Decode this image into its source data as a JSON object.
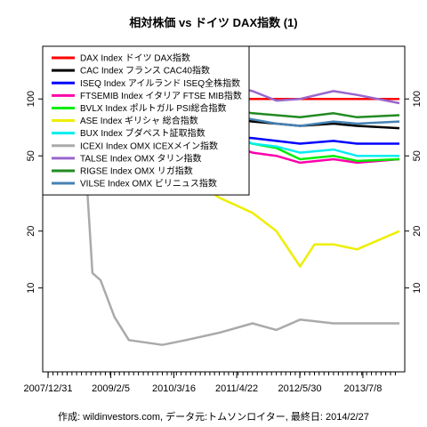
{
  "chart_data": {
    "type": "line",
    "title": "相対株価 vs ドイツ DAX指数 (1)",
    "footer": "作成: wildinvestors.com, データ元:トムソンロイター, 最終日: 2014/2/27",
    "y_scale": "log",
    "ylim": [
      3.6,
      190
    ],
    "y_ticks": [
      10,
      20,
      50,
      100
    ],
    "x_tick_labels": [
      "2007/12/31",
      "2009/2/5",
      "2010/3/16",
      "2011/4/22",
      "2012/5/30",
      "2013/7/8"
    ],
    "x_range": [
      "2007-12-31",
      "2014-02-27"
    ],
    "grid": false,
    "legend_position": "top-left",
    "reference_line": {
      "value": 100,
      "color": "#ff0000"
    },
    "series": [
      {
        "name": "DAX Index ドイツ DAX指数",
        "color": "#ff0000",
        "width": 2.5,
        "points": [
          [
            "2007-12-31",
            100
          ],
          [
            "2014-02-27",
            100
          ]
        ]
      },
      {
        "name": "CAC Index フランス CAC40指数",
        "color": "#000000",
        "width": 2.5,
        "points": [
          [
            "2007-12-31",
            100
          ],
          [
            "2008-06-01",
            95
          ],
          [
            "2008-12-01",
            85
          ],
          [
            "2009-06-01",
            80
          ],
          [
            "2010-01-01",
            78
          ],
          [
            "2010-06-01",
            76
          ],
          [
            "2011-01-01",
            80
          ],
          [
            "2011-08-01",
            76
          ],
          [
            "2012-01-01",
            74
          ],
          [
            "2012-06-01",
            72
          ],
          [
            "2013-01-01",
            74
          ],
          [
            "2013-06-01",
            72
          ],
          [
            "2014-02-27",
            70
          ]
        ]
      },
      {
        "name": "ISEQ Index アイルランド ISEQ全株指数",
        "color": "#0000ff",
        "width": 2.5,
        "points": [
          [
            "2007-12-31",
            100
          ],
          [
            "2008-06-01",
            90
          ],
          [
            "2008-12-01",
            75
          ],
          [
            "2009-06-01",
            65
          ],
          [
            "2010-01-01",
            62
          ],
          [
            "2010-06-01",
            60
          ],
          [
            "2011-01-01",
            64
          ],
          [
            "2011-08-01",
            62
          ],
          [
            "2012-01-01",
            60
          ],
          [
            "2012-06-01",
            58
          ],
          [
            "2013-01-01",
            60
          ],
          [
            "2013-06-01",
            58
          ],
          [
            "2014-02-27",
            58
          ]
        ]
      },
      {
        "name": "FTSEMIB Index イタリア FTSE MIB指数",
        "color": "#ff00aa",
        "width": 2.5,
        "points": [
          [
            "2007-12-31",
            100
          ],
          [
            "2008-06-01",
            88
          ],
          [
            "2008-12-01",
            78
          ],
          [
            "2009-06-01",
            70
          ],
          [
            "2010-01-01",
            65
          ],
          [
            "2010-06-01",
            58
          ],
          [
            "2011-01-01",
            60
          ],
          [
            "2011-08-01",
            52
          ],
          [
            "2012-01-01",
            50
          ],
          [
            "2012-06-01",
            46
          ],
          [
            "2013-01-01",
            48
          ],
          [
            "2013-06-01",
            46
          ],
          [
            "2014-02-27",
            48
          ]
        ]
      },
      {
        "name": "BVLX Index ポルトガル PSI総合指数",
        "color": "#00ee00",
        "width": 2.5,
        "points": [
          [
            "2007-12-31",
            100
          ],
          [
            "2008-06-01",
            90
          ],
          [
            "2008-12-01",
            82
          ],
          [
            "2009-06-01",
            78
          ],
          [
            "2010-01-01",
            75
          ],
          [
            "2010-06-01",
            70
          ],
          [
            "2011-01-01",
            66
          ],
          [
            "2011-08-01",
            58
          ],
          [
            "2012-01-01",
            55
          ],
          [
            "2012-06-01",
            48
          ],
          [
            "2013-01-01",
            50
          ],
          [
            "2013-06-01",
            47
          ],
          [
            "2014-02-27",
            48
          ]
        ]
      },
      {
        "name": "ASE Index ギリシャ 総合指数",
        "color": "#eeee00",
        "width": 2.5,
        "points": [
          [
            "2007-12-31",
            100
          ],
          [
            "2008-06-01",
            90
          ],
          [
            "2008-12-01",
            70
          ],
          [
            "2009-06-01",
            60
          ],
          [
            "2010-01-01",
            50
          ],
          [
            "2010-06-01",
            40
          ],
          [
            "2011-01-01",
            30
          ],
          [
            "2011-08-01",
            25
          ],
          [
            "2012-01-01",
            20
          ],
          [
            "2012-06-01",
            13
          ],
          [
            "2012-09-01",
            17
          ],
          [
            "2013-01-01",
            17
          ],
          [
            "2013-06-01",
            16
          ],
          [
            "2014-02-27",
            20
          ]
        ]
      },
      {
        "name": "BUX Index ブダペスト証取指数",
        "color": "#00eeee",
        "width": 2.5,
        "points": [
          [
            "2007-12-31",
            100
          ],
          [
            "2008-06-01",
            90
          ],
          [
            "2008-12-01",
            75
          ],
          [
            "2009-06-01",
            70
          ],
          [
            "2010-01-01",
            72
          ],
          [
            "2010-06-01",
            70
          ],
          [
            "2011-01-01",
            68
          ],
          [
            "2011-08-01",
            58
          ],
          [
            "2012-01-01",
            56
          ],
          [
            "2012-06-01",
            52
          ],
          [
            "2013-01-01",
            54
          ],
          [
            "2013-06-01",
            50
          ],
          [
            "2014-02-27",
            50
          ]
        ]
      },
      {
        "name": "ICEXI Index OMX ICEXメイン指数",
        "color": "#aaaaaa",
        "width": 2.5,
        "points": [
          [
            "2007-12-31",
            100
          ],
          [
            "2008-03-01",
            90
          ],
          [
            "2008-06-01",
            70
          ],
          [
            "2008-09-01",
            40
          ],
          [
            "2008-10-10",
            12
          ],
          [
            "2008-12-01",
            11
          ],
          [
            "2009-03-01",
            7
          ],
          [
            "2009-06-01",
            5.3
          ],
          [
            "2010-01-01",
            5.0
          ],
          [
            "2010-06-01",
            5.3
          ],
          [
            "2011-01-01",
            5.8
          ],
          [
            "2011-08-01",
            6.5
          ],
          [
            "2012-01-01",
            6.0
          ],
          [
            "2012-06-01",
            6.8
          ],
          [
            "2013-01-01",
            6.5
          ],
          [
            "2013-06-01",
            6.5
          ],
          [
            "2014-02-27",
            6.5
          ]
        ]
      },
      {
        "name": "TALSE Index OMX タリン指数",
        "color": "#9966cc",
        "width": 2.5,
        "points": [
          [
            "2007-12-31",
            100
          ],
          [
            "2008-06-01",
            96
          ],
          [
            "2008-12-01",
            80
          ],
          [
            "2009-06-01",
            85
          ],
          [
            "2010-01-01",
            100
          ],
          [
            "2010-06-01",
            110
          ],
          [
            "2011-01-01",
            120
          ],
          [
            "2011-08-01",
            110
          ],
          [
            "2012-01-01",
            98
          ],
          [
            "2012-06-01",
            100
          ],
          [
            "2013-01-01",
            110
          ],
          [
            "2013-06-01",
            105
          ],
          [
            "2014-02-27",
            95
          ]
        ]
      },
      {
        "name": "RIGSE Index OMX リガ指数",
        "color": "#228b22",
        "width": 2.5,
        "points": [
          [
            "2007-12-31",
            100
          ],
          [
            "2008-06-01",
            95
          ],
          [
            "2008-12-01",
            85
          ],
          [
            "2009-06-01",
            84
          ],
          [
            "2010-01-01",
            86
          ],
          [
            "2010-06-01",
            88
          ],
          [
            "2011-01-01",
            90
          ],
          [
            "2011-08-01",
            84
          ],
          [
            "2012-01-01",
            82
          ],
          [
            "2012-06-01",
            80
          ],
          [
            "2013-01-01",
            84
          ],
          [
            "2013-06-01",
            80
          ],
          [
            "2014-02-27",
            82
          ]
        ]
      },
      {
        "name": "VILSE Index OMX ビリニュス指数",
        "color": "#4682b4",
        "width": 2.5,
        "points": [
          [
            "2007-12-31",
            100
          ],
          [
            "2008-06-01",
            95
          ],
          [
            "2008-12-01",
            82
          ],
          [
            "2009-06-01",
            78
          ],
          [
            "2010-01-01",
            80
          ],
          [
            "2010-06-01",
            82
          ],
          [
            "2011-01-01",
            84
          ],
          [
            "2011-08-01",
            78
          ],
          [
            "2012-01-01",
            74
          ],
          [
            "2012-06-01",
            72
          ],
          [
            "2013-01-01",
            76
          ],
          [
            "2013-06-01",
            74
          ],
          [
            "2014-02-27",
            76
          ]
        ]
      }
    ]
  }
}
